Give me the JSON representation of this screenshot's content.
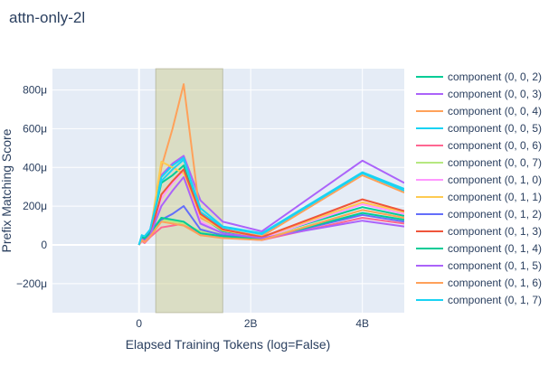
{
  "chart_data": {
    "type": "line",
    "title": "attn-only-2l",
    "xlabel": "Elapsed Training Tokens (log=False)",
    "ylabel": "Prefix Matching Score",
    "xlim": [
      -1.55,
      4.75
    ],
    "ylim": [
      -350,
      910
    ],
    "x_ticks": [
      {
        "value": 0,
        "label": "0"
      },
      {
        "value": 2,
        "label": "2B"
      },
      {
        "value": 4,
        "label": "4B"
      }
    ],
    "y_ticks": [
      {
        "value": -200,
        "label": "−200μ"
      },
      {
        "value": 0,
        "label": "0"
      },
      {
        "value": 200,
        "label": "200μ"
      },
      {
        "value": 400,
        "label": "400μ"
      },
      {
        "value": 600,
        "label": "600μ"
      },
      {
        "value": 800,
        "label": "800μ"
      }
    ],
    "highlight_region": {
      "x0": 0.3,
      "x1": 1.5,
      "color": "#cccc88"
    },
    "grid": true,
    "legend_position": "right",
    "x": [
      0,
      0.05,
      0.1,
      0.2,
      0.4,
      0.6,
      0.8,
      1.1,
      1.5,
      2.2,
      4.0,
      4.75
    ],
    "series": [
      {
        "name": "component (0, 0, 2)",
        "color": "#00cc96",
        "values": [
          0,
          40,
          30,
          70,
          320,
          360,
          410,
          150,
          70,
          40,
          195,
          150
        ]
      },
      {
        "name": "component (0, 0, 3)",
        "color": "#ab63fa",
        "values": [
          0,
          45,
          35,
          80,
          360,
          420,
          460,
          230,
          120,
          70,
          435,
          320
        ]
      },
      {
        "name": "component (0, 0, 4)",
        "color": "#ffa15a",
        "values": [
          0,
          30,
          20,
          60,
          400,
          600,
          830,
          140,
          80,
          45,
          360,
          270
        ]
      },
      {
        "name": "component (0, 0, 5)",
        "color": "#19d3f3",
        "values": [
          0,
          50,
          40,
          75,
          350,
          410,
          450,
          170,
          90,
          55,
          370,
          280
        ]
      },
      {
        "name": "component (0, 0, 6)",
        "color": "#ff6692",
        "values": [
          0,
          20,
          10,
          40,
          90,
          100,
          110,
          50,
          40,
          25,
          140,
          110
        ]
      },
      {
        "name": "component (0, 0, 7)",
        "color": "#b6e880",
        "values": [
          0,
          35,
          25,
          55,
          130,
          120,
          110,
          70,
          55,
          30,
          180,
          140
        ]
      },
      {
        "name": "component (0, 1, 0)",
        "color": "#ff97ff",
        "values": [
          0,
          25,
          15,
          50,
          240,
          320,
          380,
          120,
          60,
          35,
          210,
          160
        ]
      },
      {
        "name": "component (0, 1, 1)",
        "color": "#fecb52",
        "values": [
          0,
          40,
          30,
          65,
          430,
          400,
          370,
          150,
          75,
          40,
          220,
          170
        ]
      },
      {
        "name": "component (0, 1, 2)",
        "color": "#636efa",
        "values": [
          0,
          45,
          30,
          70,
          130,
          160,
          200,
          80,
          50,
          30,
          155,
          120
        ]
      },
      {
        "name": "component (0, 1, 3)",
        "color": "#ef553b",
        "values": [
          0,
          30,
          20,
          50,
          260,
          330,
          390,
          160,
          80,
          40,
          235,
          175
        ]
      },
      {
        "name": "component (0, 1, 4)",
        "color": "#00cc96",
        "values": [
          0,
          40,
          35,
          60,
          140,
          130,
          120,
          60,
          45,
          28,
          165,
          130
        ]
      },
      {
        "name": "component (0, 1, 5)",
        "color": "#ab63fa",
        "values": [
          0,
          30,
          20,
          50,
          200,
          280,
          350,
          110,
          60,
          35,
          125,
          95
        ]
      },
      {
        "name": "component (0, 1, 6)",
        "color": "#ffa15a",
        "values": [
          0,
          25,
          15,
          45,
          120,
          110,
          100,
          50,
          35,
          25,
          180,
          140
        ]
      },
      {
        "name": "component (0, 1, 7)",
        "color": "#19d3f3",
        "values": [
          0,
          50,
          45,
          80,
          330,
          390,
          440,
          190,
          95,
          60,
          375,
          290
        ]
      }
    ]
  }
}
